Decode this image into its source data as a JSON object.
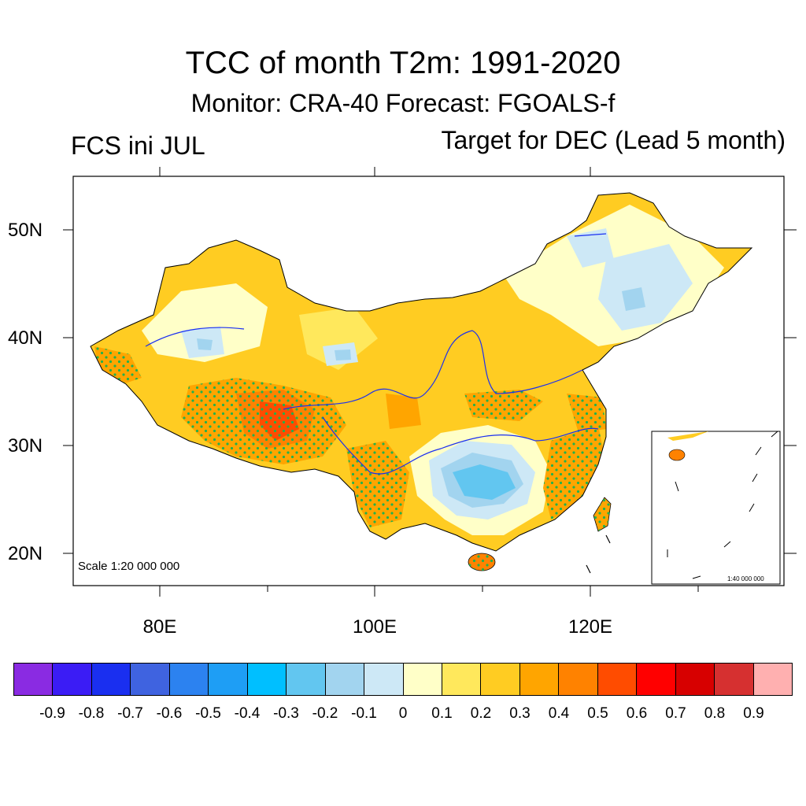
{
  "title": "TCC of month T2m: 1991-2020",
  "subtitle": "Monitor: CRA-40   Forecast: FGOALS-f",
  "left_label": "FCS ini JUL",
  "right_label": "Target for DEC (Lead 5 month)",
  "map": {
    "lat_labels": [
      "50N",
      "40N",
      "30N",
      "20N"
    ],
    "lon_labels": [
      "80E",
      "100E",
      "120E"
    ],
    "scale_text": "Scale 1:20 000 000",
    "inset_scale_text": "1:40 000 000"
  },
  "colorbar": {
    "colors": [
      "#8a2be2",
      "#3b1cf5",
      "#1a2ff0",
      "#3f63e0",
      "#2c82f0",
      "#1e9ef5",
      "#00bfff",
      "#62c6f0",
      "#a2d4ef",
      "#cde8f6",
      "#ffffc8",
      "#ffe85c",
      "#ffcc22",
      "#ffa500",
      "#ff8200",
      "#ff4c00",
      "#ff0000",
      "#d70000",
      "#d63030",
      "#ffb0b0"
    ],
    "labels": [
      "-0.9",
      "-0.8",
      "-0.7",
      "-0.6",
      "-0.5",
      "-0.4",
      "-0.3",
      "-0.2",
      "-0.1",
      "0",
      "0.1",
      "0.2",
      "0.3",
      "0.4",
      "0.5",
      "0.6",
      "0.7",
      "0.8",
      "0.9"
    ]
  }
}
